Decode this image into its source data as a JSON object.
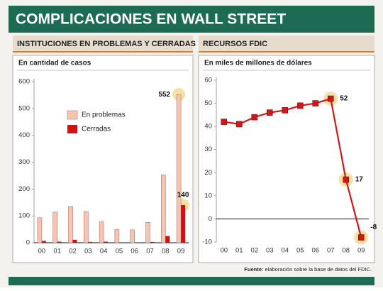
{
  "header": {
    "title": "COMPLICACIONES EN WALL STREET"
  },
  "chart_data": [
    {
      "type": "bar",
      "title": "INSTITUCIONES EN PROBLEMAS Y CERRADAS",
      "subtitle": "En cantidad de casos",
      "categories": [
        "00",
        "01",
        "02",
        "03",
        "04",
        "05",
        "06",
        "07",
        "08",
        "09"
      ],
      "series": [
        {
          "name": "En problemas",
          "color": "#f3c6b4",
          "values": [
            93,
            114,
            135,
            116,
            79,
            50,
            48,
            76,
            252,
            552
          ]
        },
        {
          "name": "Cerradas",
          "color": "#cc1414",
          "values": [
            7,
            4,
            11,
            3,
            4,
            0,
            0,
            3,
            25,
            140
          ]
        }
      ],
      "ylim": [
        0,
        600
      ],
      "yticks": [
        0,
        100,
        200,
        300,
        400,
        500,
        600
      ],
      "grid": false
    },
    {
      "type": "line",
      "title": "RECURSOS FDIC",
      "subtitle": "En miles de millones de dólares",
      "categories": [
        "00",
        "01",
        "02",
        "03",
        "04",
        "05",
        "06",
        "07",
        "08",
        "09"
      ],
      "series": [
        {
          "name": null,
          "color": "#d01818",
          "values": [
            42,
            41,
            44,
            46,
            47,
            49,
            50,
            52,
            17,
            -8
          ]
        }
      ],
      "ylim": [
        -10,
        60
      ],
      "yticks": [
        -10,
        0,
        10,
        20,
        30,
        40,
        50,
        60
      ],
      "grid": false
    }
  ],
  "footer": {
    "source_label": "Fuente:",
    "source_text": "elaboración sobre la base de datos del FDIC."
  }
}
